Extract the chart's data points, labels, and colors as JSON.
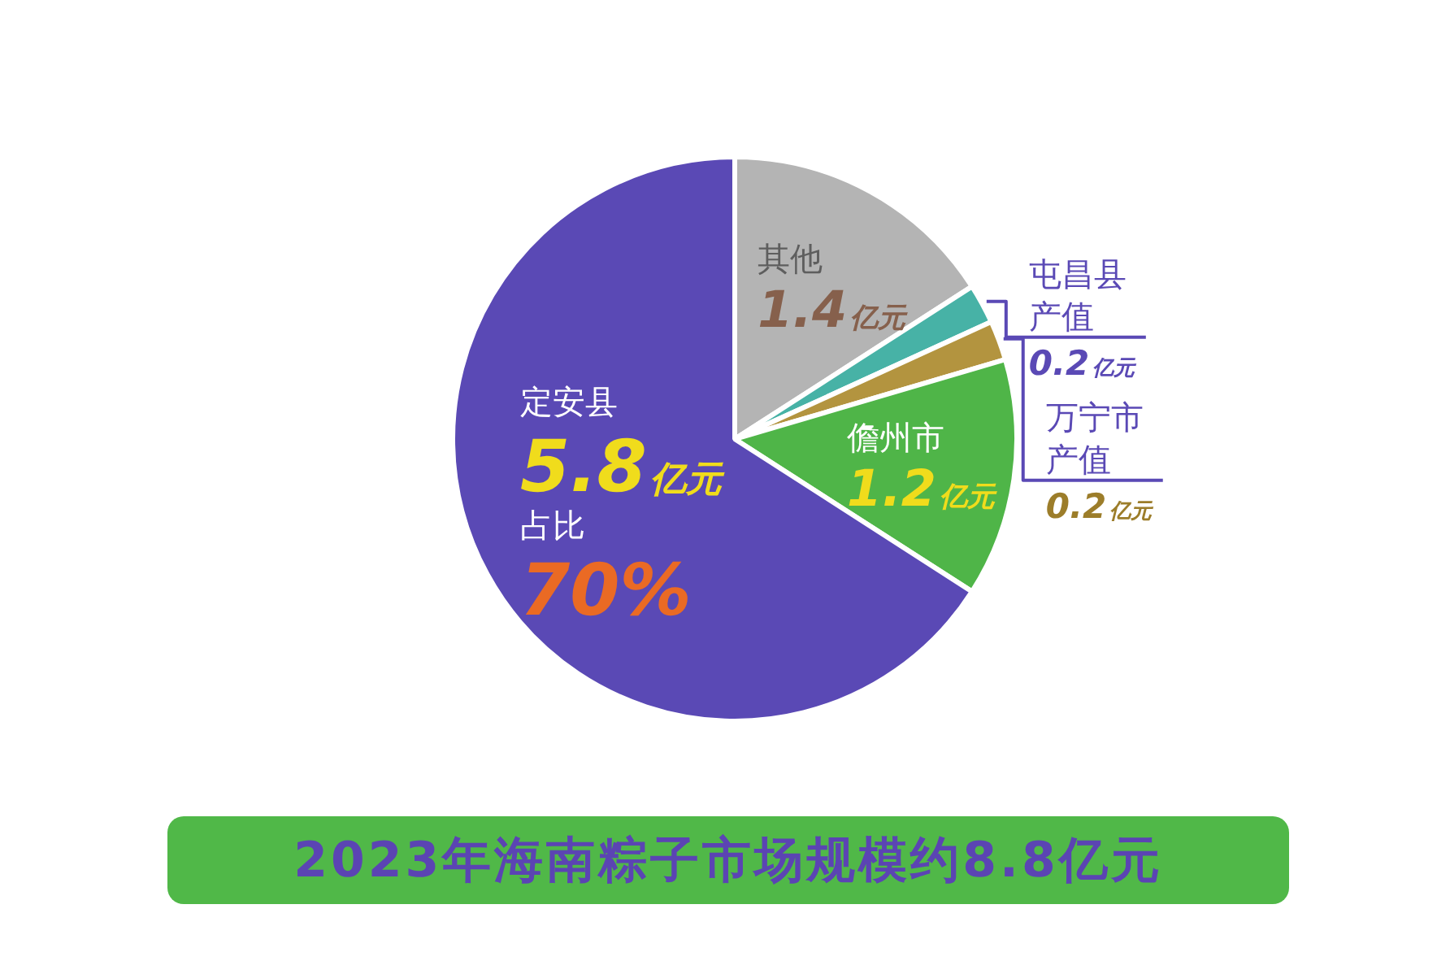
{
  "chart_data": {
    "type": "pie",
    "title": "2023年海南粽子市场规模约8.8亿元",
    "categories": [
      "其他",
      "屯昌县产值",
      "万宁市产值",
      "儋州市",
      "定安县"
    ],
    "values": [
      1.4,
      0.2,
      0.2,
      1.2,
      5.8
    ],
    "colors": [
      "#b4b4b4",
      "#47b2a6",
      "#b3943f",
      "#4fb548",
      "#5a49b5"
    ],
    "value_labels": [
      "1.4亿元",
      "0.2亿元",
      "0.2亿元",
      "1.2亿元",
      "5.8亿元"
    ],
    "annotations": [
      {
        "text": "占比",
        "x": "定安县"
      },
      {
        "text": "70%",
        "x": "定安县"
      }
    ]
  }
}
